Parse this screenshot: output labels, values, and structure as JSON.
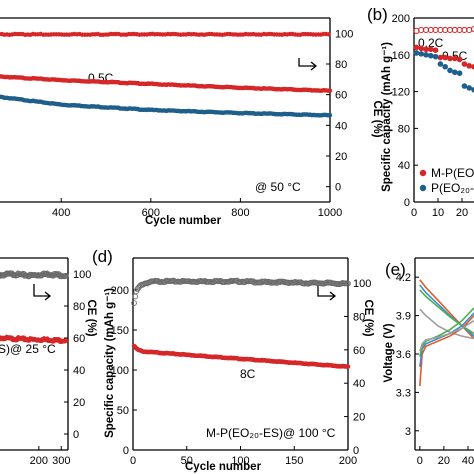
{
  "colors": {
    "red": "#d62728",
    "blue": "#1f5f8b",
    "grey": "#6b6b6b"
  },
  "chart_data": [
    {
      "id": "a",
      "type": "line",
      "panel_label": "",
      "xlabel": "Cycle number",
      "y2label": "CE (%)",
      "xticks": [
        400,
        600,
        800,
        1000
      ],
      "y2ticks": [
        0,
        20,
        40,
        60,
        80,
        100
      ],
      "xlim": [
        250,
        1000
      ],
      "y2lim": [
        -10,
        110
      ],
      "annotations": {
        "rate": "0.5C",
        "temp": "@ 50 °C"
      },
      "series": [
        {
          "color": "red",
          "axis": "y2",
          "kind": "ce",
          "x": [
            250,
            400,
            600,
            800,
            1000
          ],
          "y": [
            99.3,
            99.3,
            99.4,
            99.3,
            99.3
          ]
        },
        {
          "color": "red",
          "axis": "y2",
          "kind": "capacity_scaled",
          "x": [
            250,
            400,
            600,
            800,
            1000
          ],
          "y": [
            72,
            69.5,
            67,
            64.5,
            62.5
          ]
        },
        {
          "color": "blue",
          "axis": "y2",
          "kind": "capacity_scaled",
          "x": [
            250,
            400,
            600,
            800,
            1000
          ],
          "y": [
            59,
            53.5,
            50,
            48,
            46.5
          ]
        }
      ]
    },
    {
      "id": "b",
      "type": "scatter",
      "panel_label": "(b)",
      "xlabel": "",
      "ylabel": "Specific capacity (mAh g⁻¹)",
      "xticks": [
        0,
        10,
        20
      ],
      "yticks": [
        0,
        40,
        80,
        120,
        160,
        200
      ],
      "xlim": [
        0,
        25
      ],
      "ylim": [
        0,
        200
      ],
      "annotations": {
        "r1": "0.2C",
        "r2": "0.5C"
      },
      "legend": [
        "M-P(EO",
        "P(EO₂₀-"
      ],
      "series": [
        {
          "color": "red",
          "kind": "ce",
          "x": [
            1,
            3,
            5,
            7,
            9,
            11,
            13,
            15,
            17,
            19,
            21,
            23,
            25
          ],
          "y": [
            186,
            187,
            187,
            187,
            187,
            187,
            187,
            187,
            187,
            187,
            187,
            187,
            188
          ]
        },
        {
          "color": "red",
          "kind": "capacity",
          "x": [
            1,
            3,
            5,
            7,
            9,
            11,
            13,
            15,
            17,
            19,
            21,
            23,
            25
          ],
          "y": [
            168,
            167,
            166,
            166,
            165,
            157,
            157,
            156,
            156,
            155,
            150,
            148,
            147
          ]
        },
        {
          "color": "blue",
          "kind": "capacity",
          "x": [
            1,
            3,
            5,
            7,
            9,
            11,
            13,
            15,
            17,
            19,
            21,
            23,
            25
          ],
          "y": [
            162,
            161,
            160,
            159,
            158,
            150,
            147,
            143,
            141,
            140,
            126,
            124,
            122
          ]
        }
      ]
    },
    {
      "id": "c",
      "type": "scatter",
      "panel_label": "",
      "xlabel": "",
      "y2label": "CE (%)",
      "xticks": [
        200,
        300
      ],
      "y2ticks": [
        0,
        20,
        40,
        60,
        80,
        100
      ],
      "xlim": [
        0,
        330
      ],
      "y2lim": [
        -10,
        110
      ],
      "annotations": {
        "temp": "S)@ 25 °C"
      },
      "series": [
        {
          "color": "grey",
          "axis": "y2",
          "kind": "ce",
          "x": [
            0,
            40,
            80,
            120,
            160,
            200,
            240,
            280,
            320
          ],
          "y": [
            99,
            99.5,
            100,
            99.5,
            99,
            99.5,
            100,
            99.5,
            99
          ]
        },
        {
          "color": "red",
          "axis": "y2",
          "kind": "capacity_scaled",
          "x": [
            0,
            40,
            80,
            120,
            160,
            200,
            240,
            280,
            320
          ],
          "y": [
            60,
            60,
            59.5,
            59.5,
            59,
            59,
            59,
            58.5,
            58.5
          ]
        }
      ]
    },
    {
      "id": "d",
      "type": "scatter",
      "panel_label": "(d)",
      "xlabel": "Cycle number",
      "ylabel": "Specific capacity (mAh g⁻¹)",
      "y2label": "CE (%)",
      "xticks": [
        0,
        50,
        100,
        150,
        200
      ],
      "yticks": [
        0,
        50,
        100,
        150,
        200
      ],
      "y2ticks": [
        0,
        20,
        40,
        60,
        80,
        100
      ],
      "xlim": [
        0,
        200
      ],
      "ylim": [
        0,
        240
      ],
      "y2lim": [
        0,
        115
      ],
      "annotations": {
        "rate": "8C",
        "temp": "M-P(EO₂₀-ES)@ 100 °C"
      },
      "series": [
        {
          "color": "grey",
          "axis": "y2",
          "kind": "ce",
          "x": [
            1,
            3,
            5,
            8,
            12,
            20,
            40,
            60,
            80,
            100,
            120,
            140,
            160,
            180,
            200
          ],
          "y": [
            88,
            95,
            97,
            99,
            100,
            101,
            101,
            101,
            101,
            101,
            100.5,
            100.5,
            100,
            100,
            99.5
          ]
        },
        {
          "color": "red",
          "axis": "y",
          "kind": "capacity",
          "x": [
            1,
            3,
            5,
            10,
            20,
            40,
            60,
            80,
            100,
            120,
            140,
            160,
            180,
            200
          ],
          "y": [
            130,
            127,
            125,
            123,
            122,
            120,
            118,
            116,
            114,
            112,
            110,
            108,
            106,
            104
          ]
        }
      ]
    },
    {
      "id": "e",
      "type": "line",
      "panel_label": "(e)",
      "xlabel": "",
      "ylabel": "Voltage (V)",
      "xticks": [
        0,
        20,
        40
      ],
      "yticks": [
        3.0,
        3.3,
        3.6,
        3.9,
        4.2
      ],
      "xlim": [
        -4,
        45
      ],
      "ylim": [
        2.85,
        4.35
      ],
      "series": [
        {
          "color": "#e25a2a",
          "x": [
            0,
            5,
            15,
            25,
            35,
            45
          ],
          "y": [
            4.18,
            4.12,
            4.02,
            3.92,
            3.82,
            3.72
          ]
        },
        {
          "color": "#3a8fd0",
          "x": [
            0,
            5,
            15,
            25,
            35,
            45
          ],
          "y": [
            4.14,
            4.08,
            3.99,
            3.9,
            3.82,
            3.74
          ]
        },
        {
          "color": "#4caf50",
          "x": [
            0,
            5,
            15,
            25,
            35,
            45
          ],
          "y": [
            4.1,
            4.05,
            3.97,
            3.89,
            3.82,
            3.76
          ]
        },
        {
          "color": "#9e9e9e",
          "x": [
            0,
            5,
            15,
            25,
            35,
            45
          ],
          "y": [
            3.95,
            3.9,
            3.82,
            3.77,
            3.74,
            3.72
          ]
        },
        {
          "color": "#e25a2a",
          "x": [
            0,
            2,
            5,
            15,
            25,
            35,
            45
          ],
          "y": [
            3.35,
            3.6,
            3.66,
            3.7,
            3.74,
            3.8,
            3.9
          ]
        },
        {
          "color": "#3a8fd0",
          "x": [
            0,
            2,
            5,
            15,
            25,
            35,
            45
          ],
          "y": [
            3.5,
            3.64,
            3.68,
            3.72,
            3.76,
            3.82,
            3.92
          ]
        },
        {
          "color": "#4caf50",
          "x": [
            0,
            2,
            5,
            15,
            25,
            35,
            45
          ],
          "y": [
            3.58,
            3.66,
            3.7,
            3.74,
            3.79,
            3.86,
            3.96
          ]
        },
        {
          "color": "#9e9e9e",
          "x": [
            0,
            2,
            5,
            15,
            25,
            35,
            45
          ],
          "y": [
            3.62,
            3.68,
            3.71,
            3.73,
            3.76,
            3.8,
            3.86
          ]
        }
      ]
    }
  ]
}
